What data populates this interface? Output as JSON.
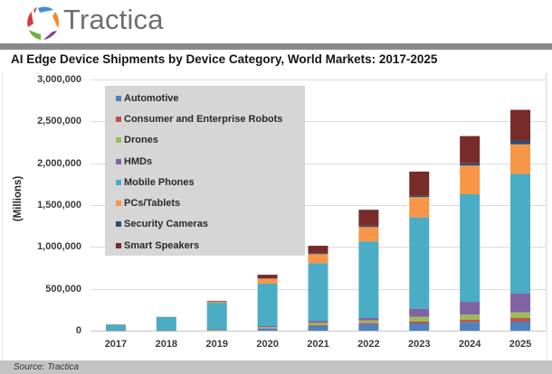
{
  "header": {
    "logo_text": "Tractica",
    "logo_icon": "tractica-ring-logo-icon"
  },
  "chart_data": {
    "type": "bar",
    "stacked": true,
    "title": "AI Edge Device Shipments by Device Category, World Markets: 2017-2025",
    "xlabel": "",
    "ylabel": "(Millions)",
    "ylim": [
      0,
      3000000
    ],
    "yticks": [
      0,
      500000,
      1000000,
      1500000,
      2000000,
      2500000,
      3000000
    ],
    "ytick_labels": [
      "0",
      "500,000",
      "1,000,000",
      "1,500,000",
      "2,000,000",
      "2,500,000",
      "3,000,000"
    ],
    "grid": true,
    "legend_position": "top-left (inside plot)",
    "categories": [
      "2017",
      "2018",
      "2019",
      "2020",
      "2021",
      "2022",
      "2023",
      "2024",
      "2025"
    ],
    "series": [
      {
        "name": "Automotive",
        "color": "#4F81BD",
        "values": [
          1000,
          1000,
          4000,
          25000,
          54000,
          78000,
          86000,
          100000,
          108000
        ]
      },
      {
        "name": "Consumer and Enterprise Robots",
        "color": "#C0504D",
        "values": [
          500,
          1000,
          2000,
          5000,
          10000,
          15000,
          22000,
          29000,
          43000
        ]
      },
      {
        "name": "Drones",
        "color": "#9BBB59",
        "values": [
          500,
          1000,
          5000,
          12000,
          29000,
          29000,
          57000,
          62000,
          68000
        ]
      },
      {
        "name": "HMDs",
        "color": "#8064A2",
        "values": [
          500,
          1000,
          5000,
          12000,
          25000,
          29000,
          97000,
          154000,
          224000
        ]
      },
      {
        "name": "Mobile Phones",
        "color": "#4BACC6",
        "values": [
          72000,
          160000,
          318000,
          508000,
          688000,
          915000,
          1091000,
          1285000,
          1429000
        ]
      },
      {
        "name": "PCs/Tablets",
        "color": "#F79646",
        "values": [
          500,
          1000,
          15000,
          60000,
          108000,
          172000,
          242000,
          342000,
          353000
        ]
      },
      {
        "name": "Security Cameras",
        "color": "#2C4D75",
        "values": [
          0,
          0,
          1000,
          3000,
          10000,
          15000,
          17000,
          28000,
          46000
        ]
      },
      {
        "name": "Smart Speakers",
        "color": "#772C2A",
        "values": [
          0,
          0,
          5000,
          43000,
          90000,
          191000,
          288000,
          324000,
          367000
        ]
      }
    ]
  },
  "footer": {
    "source": "Source: Tractica"
  }
}
